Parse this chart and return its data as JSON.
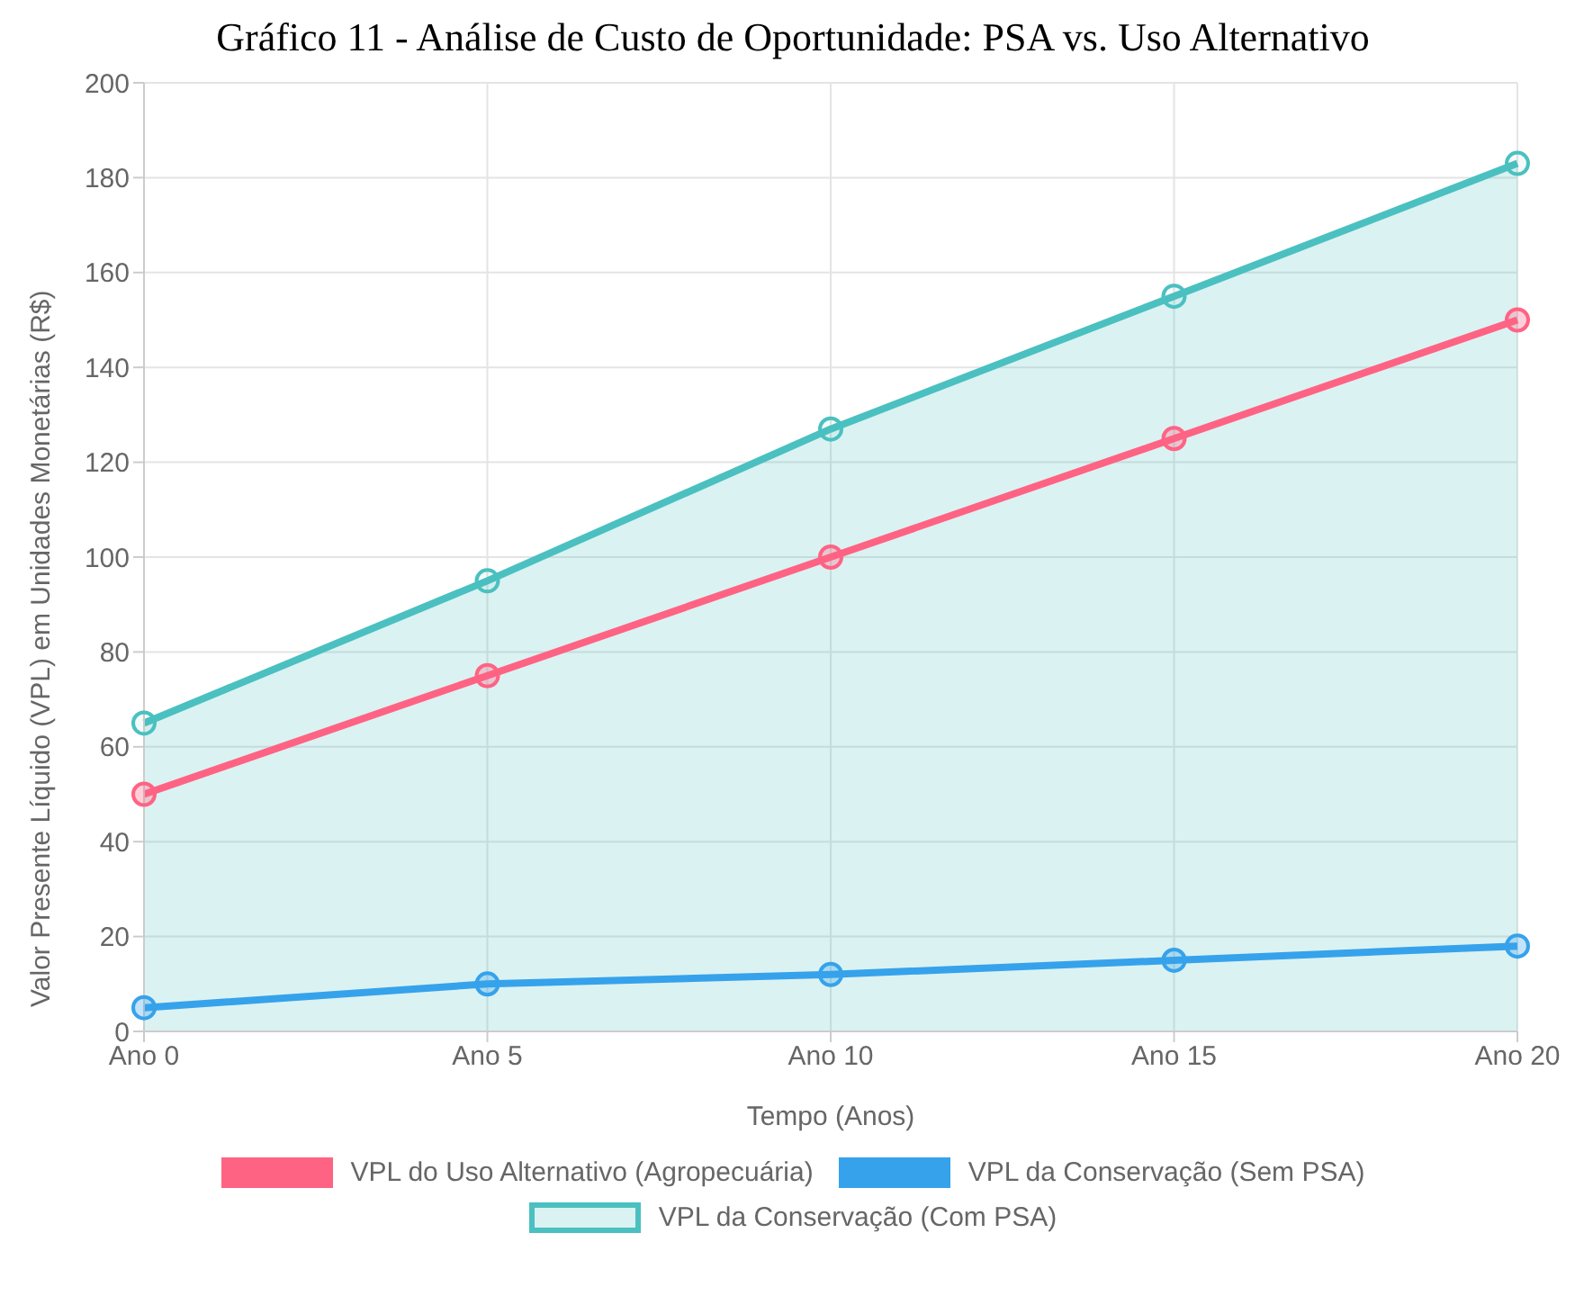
{
  "chart_data": {
    "type": "line",
    "title": "Gráfico 11 - Análise de Custo de Oportunidade: PSA vs. Uso Alternativo",
    "xlabel": "Tempo (Anos)",
    "ylabel": "Valor Presente Líquido (VPL) em Unidades Monetárias (R$)",
    "categories": [
      "Ano 0",
      "Ano 5",
      "Ano 10",
      "Ano 15",
      "Ano 20"
    ],
    "series": [
      {
        "name": "VPL do Uso Alternativo (Agropecuária)",
        "color": "#ff6384",
        "values": [
          50,
          75,
          100,
          125,
          150
        ]
      },
      {
        "name": "VPL da Conservação (Sem PSA)",
        "color": "#36a2eb",
        "values": [
          5,
          10,
          12,
          15,
          18
        ]
      },
      {
        "name": "VPL da Conservação (Com PSA)",
        "color": "#4bc0c0",
        "type": "area",
        "values": [
          65,
          95,
          127,
          155,
          183
        ]
      }
    ],
    "ylim": [
      0,
      200
    ],
    "yticks": [
      0,
      20,
      40,
      60,
      80,
      100,
      120,
      140,
      160,
      180,
      200
    ],
    "grid": true,
    "legend": "bottom",
    "marker": "circle",
    "line_style": "solid"
  }
}
